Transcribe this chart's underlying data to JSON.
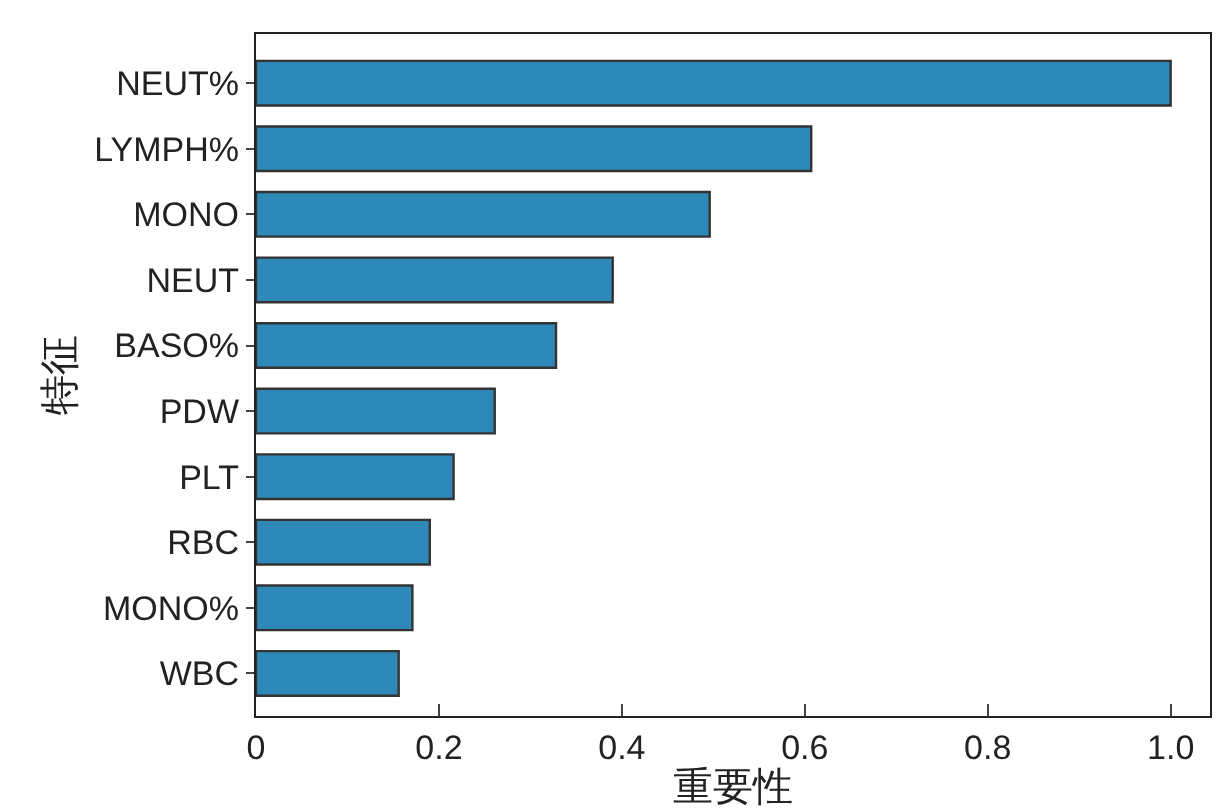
{
  "chart_data": {
    "type": "bar",
    "orientation": "horizontal",
    "xlabel": "重要性",
    "ylabel": "特征",
    "categories": [
      "NEUT%",
      "LYMPH%",
      "MONO",
      "NEUT",
      "BASO%",
      "PDW",
      "PLT",
      "RBC",
      "MONO%",
      "WBC"
    ],
    "values": [
      1.0,
      0.607,
      0.496,
      0.39,
      0.328,
      0.261,
      0.216,
      0.19,
      0.171,
      0.156
    ],
    "color": "#2e89b8",
    "xlim": [
      0,
      1.043
    ],
    "xticks": [
      0,
      0.2,
      0.4,
      0.6,
      0.8,
      {
        "value": 1.0,
        "label": "1.0"
      }
    ],
    "tick_labels": true
  }
}
